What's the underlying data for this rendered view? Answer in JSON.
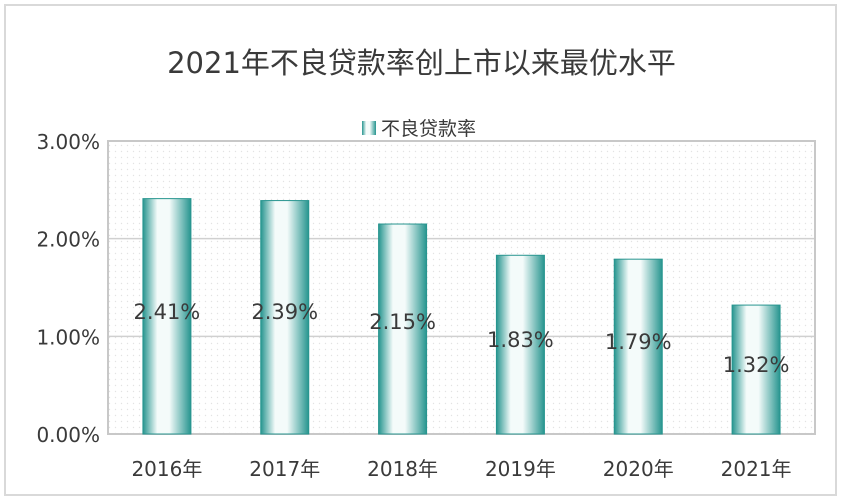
{
  "chart_data": {
    "type": "bar",
    "title": "2021年不良贷款率创上市以来最优水平",
    "categories": [
      "2016年",
      "2017年",
      "2018年",
      "2019年",
      "2020年",
      "2021年"
    ],
    "series": [
      {
        "name": "不良贷款率",
        "values": [
          2.41,
          2.39,
          2.15,
          1.83,
          1.79,
          1.32
        ],
        "data_labels": [
          "2.41%",
          "2.39%",
          "2.15%",
          "1.83%",
          "1.79%",
          "1.32%"
        ]
      }
    ],
    "ylim": [
      0,
      3
    ],
    "yticks": [
      {
        "value": 0,
        "label": "0.00%"
      },
      {
        "value": 1,
        "label": "1.00%"
      },
      {
        "value": 2,
        "label": "2.00%"
      },
      {
        "value": 3,
        "label": "3.00%"
      }
    ],
    "legend_position": "top",
    "grid": true,
    "colors": {
      "bar_edge": "#27958f",
      "bar_mid": "#f4fbfa",
      "grid": "#d0d0d0",
      "axis": "#bfbfbf",
      "text": "#3a3a3a"
    }
  }
}
